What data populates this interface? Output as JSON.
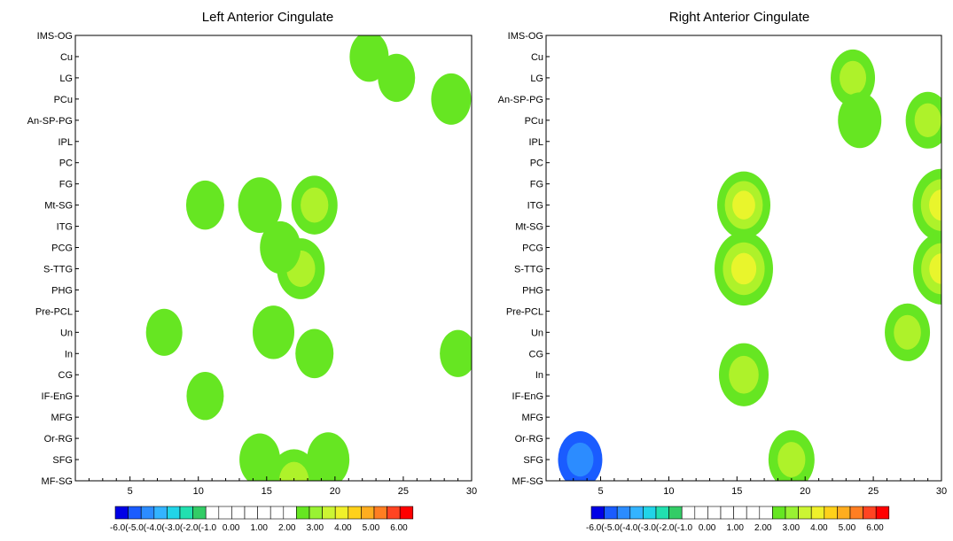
{
  "colors": {
    "scale": [
      "#0000e6",
      "#1a5cff",
      "#2c8cff",
      "#33b4ff",
      "#22d4e8",
      "#22e0b0",
      "#33cc66",
      "#ffffff",
      "#ffffff",
      "#ffffff",
      "#ffffff",
      "#ffffff",
      "#ffffff",
      "#ffffff",
      "#66e622",
      "#99f233",
      "#ccf533",
      "#f0f02a",
      "#ffd11a",
      "#ffad1f",
      "#ff7e22",
      "#ff4422",
      "#ff0000"
    ],
    "positive": [
      "#66e622",
      "#aef22a",
      "#e9f52c",
      "#ffd02a",
      "#ff9c2a",
      "#ff5a1f"
    ],
    "negative": [
      "#1a5cff",
      "#2c8cff",
      "#22d4e8",
      "#33cc66",
      "#22e0b0",
      "#33e6aa"
    ]
  },
  "chart_data": [
    {
      "type": "heatmap",
      "title": "Left Anterior Cingulate",
      "xlabel": "",
      "ylabel": "",
      "xlim": [
        1,
        30
      ],
      "xticks": [
        "5",
        "10",
        "15",
        "20",
        "25",
        "30"
      ],
      "yticks": [
        "IMS-OG",
        "Cu",
        "LG",
        "PCu",
        "An-SP-PG",
        "IPL",
        "PC",
        "FG",
        "Mt-SG",
        "ITG",
        "PCG",
        "S-TTG",
        "PHG",
        "Pre-PCL",
        "Un",
        "In",
        "CG",
        "IF-EnG",
        "MFG",
        "Or-RG",
        "SFG",
        "MF-SG"
      ],
      "colorbar": {
        "range": [
          -6,
          6
        ],
        "labels": [
          "-6.0(-5.0(-4.0(-3.0(-2.0(-1.0",
          "0.00",
          "1.00",
          "2.00",
          "3.00",
          "4.00",
          "5.00",
          "6.00"
        ]
      },
      "blobs": [
        {
          "x": 17.5,
          "y": "S-TTG",
          "v": 3.4
        },
        {
          "x": 18.5,
          "y": "Mt-SG",
          "v": 3.2
        },
        {
          "x": 14.5,
          "y": "Mt-SG",
          "v": 2.9
        },
        {
          "x": 16,
          "y": "PCG",
          "v": 2.6
        },
        {
          "x": 15.5,
          "y": "Un",
          "v": 2.7
        },
        {
          "x": 18.5,
          "y": "In",
          "v": 2.3
        },
        {
          "x": 17,
          "y": "MF-SG",
          "v": 3.6
        },
        {
          "x": 14.5,
          "y": "SFG",
          "v": 2.6
        },
        {
          "x": 19.5,
          "y": "SFG",
          "v": 2.8
        },
        {
          "x": 22.5,
          "y": "Cu",
          "v": 2.4
        },
        {
          "x": 24.5,
          "y": "LG",
          "v": 2.2
        },
        {
          "x": 28.5,
          "y": "PCu",
          "v": 2.5
        },
        {
          "x": 29,
          "y": "In",
          "v": 2.1
        },
        {
          "x": 10.5,
          "y": "Mt-SG",
          "v": 2.3
        },
        {
          "x": 7.5,
          "y": "Un",
          "v": 2.1
        },
        {
          "x": 10.5,
          "y": "IF-EnG",
          "v": 2.2
        }
      ]
    },
    {
      "type": "heatmap",
      "title": "Right Anterior Cingulate",
      "xlabel": "",
      "ylabel": "",
      "xlim": [
        1,
        30
      ],
      "xticks": [
        "5",
        "10",
        "15",
        "20",
        "25",
        "30"
      ],
      "yticks": [
        "IMS-OG",
        "Cu",
        "LG",
        "An-SP-PG",
        "PCu",
        "IPL",
        "PC",
        "FG",
        "ITG",
        "Mt-SG",
        "PCG",
        "S-TTG",
        "PHG",
        "Pre-PCL",
        "Un",
        "CG",
        "In",
        "IF-EnG",
        "MFG",
        "Or-RG",
        "SFG",
        "MF-SG"
      ],
      "colorbar": {
        "range": [
          -6,
          6
        ],
        "labels": [
          "-6.0(-5.0(-4.0(-3.0(-2.0(-1.0",
          "0.00",
          "1.00",
          "2.00",
          "3.00",
          "4.00",
          "5.00",
          "6.00"
        ]
      },
      "blobs": [
        {
          "x": 15.5,
          "y": "S-TTG",
          "v": 4.6
        },
        {
          "x": 15.5,
          "y": "ITG",
          "v": 4.0
        },
        {
          "x": 15.5,
          "y": "In",
          "v": 3.6
        },
        {
          "x": 19,
          "y": "SFG",
          "v": 3.2
        },
        {
          "x": 23.5,
          "y": "LG",
          "v": 3.0
        },
        {
          "x": 24,
          "y": "PCu",
          "v": 2.9
        },
        {
          "x": 30,
          "y": "ITG",
          "v": 4.5
        },
        {
          "x": 30,
          "y": "S-TTG",
          "v": 4.4
        },
        {
          "x": 29,
          "y": "PCu",
          "v": 3.0
        },
        {
          "x": 27.5,
          "y": "Un",
          "v": 3.1
        },
        {
          "x": 3.5,
          "y": "SFG",
          "v": -3.0
        }
      ]
    }
  ]
}
